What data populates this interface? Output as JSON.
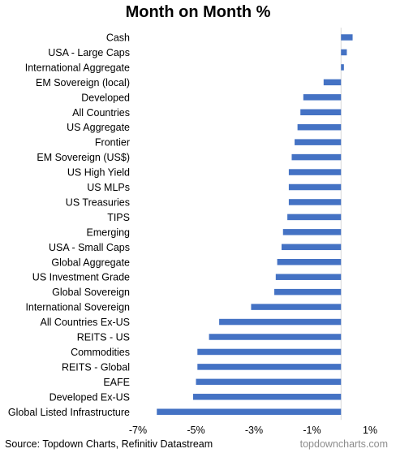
{
  "chart_data": {
    "type": "bar",
    "orientation": "horizontal",
    "title": "Month on Month %",
    "categories": [
      "Cash",
      "USA - Large Caps",
      "International Aggregate",
      "EM Sovereign (local)",
      "Developed",
      "All Countries",
      "US Aggregate",
      "Frontier",
      "EM Sovereign (US$)",
      "US High Yield",
      "US MLPs",
      "US Treasuries",
      "TIPS",
      "Emerging",
      "USA - Small Caps",
      "Global Aggregate",
      "US Investment Grade",
      "Global Sovereign",
      "International Sovereign",
      "All Countries Ex-US",
      "REITS - US",
      "Commodities",
      "REITS - Global",
      "EAFE",
      "Developed Ex-US",
      "Global Listed Infrastructure"
    ],
    "values": [
      0.4,
      0.2,
      0.1,
      -0.6,
      -1.3,
      -1.4,
      -1.5,
      -1.6,
      -1.7,
      -1.8,
      -1.8,
      -1.8,
      -1.85,
      -2.0,
      -2.05,
      -2.2,
      -2.25,
      -2.3,
      -3.1,
      -4.2,
      -4.55,
      -4.95,
      -4.95,
      -5.0,
      -5.1,
      -6.35
    ],
    "x_ticks": [
      "-7%",
      "-5%",
      "-3%",
      "-1%",
      "1%"
    ],
    "xlim": [
      -7,
      1
    ],
    "bar_color": "#4472C4",
    "grid": false,
    "legend": "none"
  },
  "footer": {
    "source": "Source: Topdown Charts, Refinitiv Datastream",
    "watermark": "topdowncharts.com"
  }
}
